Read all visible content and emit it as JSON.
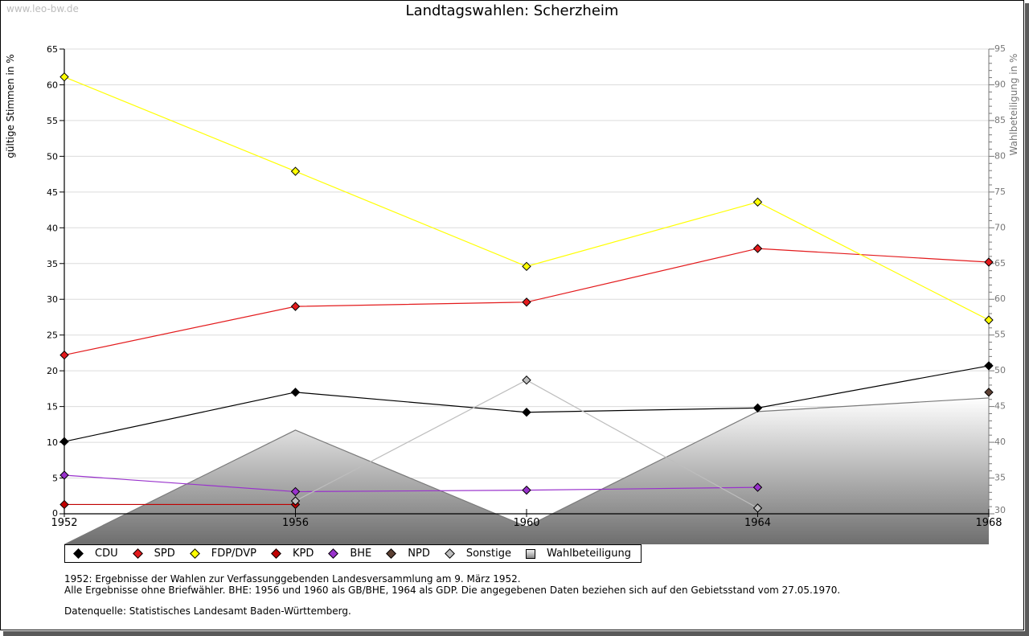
{
  "watermark": "www.leo-bw.de",
  "chart_data": {
    "type": "line",
    "title": "Landtagswahlen: Scherzheim",
    "xlabel": "",
    "ylabel": "gültige Stimmen in %",
    "y2label": "Wahlbeteiligung in %",
    "x": [
      1952,
      1956,
      1960,
      1964,
      1968
    ],
    "x_tick_labels": [
      "1952",
      "1956",
      "1960",
      "1964",
      "1968"
    ],
    "ylim": [
      0,
      65
    ],
    "y_ticks": [
      0,
      5,
      10,
      15,
      20,
      25,
      30,
      35,
      40,
      45,
      50,
      55,
      60,
      65
    ],
    "y2lim": [
      30,
      95
    ],
    "y2_ticks": [
      30,
      35,
      40,
      45,
      50,
      55,
      60,
      65,
      70,
      75,
      80,
      85,
      90,
      95
    ],
    "grid": true,
    "legend_position": "bottom",
    "series": [
      {
        "name": "CDU",
        "color": "#000000",
        "marker": "diamond",
        "values": [
          10.1,
          17.0,
          14.2,
          14.8,
          20.7
        ]
      },
      {
        "name": "SPD",
        "color": "#e31a1c",
        "marker": "diamond",
        "values": [
          22.2,
          29.0,
          29.6,
          37.1,
          35.2
        ]
      },
      {
        "name": "FDP/DVP",
        "color": "#ffff00",
        "marker": "diamond",
        "values": [
          61.1,
          47.9,
          34.6,
          43.6,
          27.1
        ]
      },
      {
        "name": "KPD",
        "color": "#c00000",
        "marker": "diamond",
        "values": [
          1.3,
          1.3,
          null,
          null,
          null
        ]
      },
      {
        "name": "BHE",
        "color": "#9932cc",
        "marker": "diamond",
        "values": [
          5.4,
          3.1,
          3.3,
          3.7,
          null
        ]
      },
      {
        "name": "NPD",
        "color": "#5c4033",
        "marker": "diamond",
        "values": [
          null,
          null,
          null,
          null,
          17.0
        ]
      },
      {
        "name": "Sonstige",
        "color": "#bdbdbd",
        "marker": "diamond",
        "values": [
          null,
          1.8,
          18.7,
          0.8,
          null
        ]
      }
    ],
    "area_series": {
      "name": "Wahlbeteiligung",
      "axis": "right",
      "values": [
        25.7,
        41.7,
        28.2,
        44.3,
        46.2
      ]
    }
  },
  "notes": [
    "1952: Ergebnisse der Wahlen zur Verfassunggebenden Landesversammlung am 9. März 1952.",
    "Alle Ergebnisse ohne Briefwähler. BHE: 1956 und 1960 als GB/BHE, 1964 als GDP. Die angegebenen Daten beziehen sich auf den Gebietsstand vom 27.05.1970."
  ],
  "source": "Datenquelle: Statistisches Landesamt Baden-Württemberg."
}
